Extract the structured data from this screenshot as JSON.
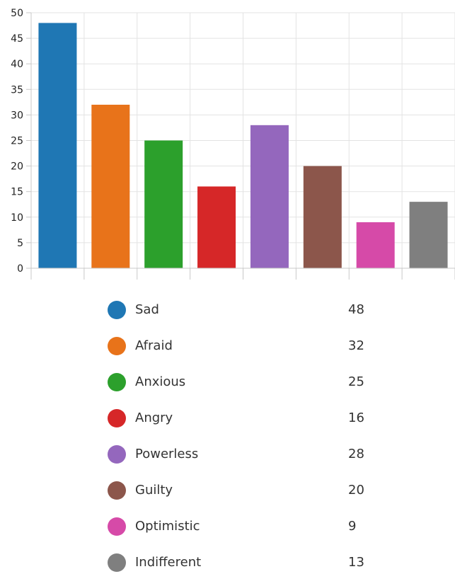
{
  "chart_data": {
    "type": "bar",
    "categories": [
      "Sad",
      "Afraid",
      "Anxious",
      "Angry",
      "Powerless",
      "Guilty",
      "Optimistic",
      "Indifferent"
    ],
    "values": [
      48,
      32,
      25,
      16,
      28,
      20,
      9,
      13
    ],
    "colors": [
      "#1f77b4",
      "#e8731a",
      "#2ca02c",
      "#d62728",
      "#9467bd",
      "#8c564b",
      "#d64aa8",
      "#7f7f7f"
    ],
    "ylim": [
      0,
      50
    ],
    "yticks": [
      0,
      5,
      10,
      15,
      20,
      25,
      30,
      35,
      40,
      45,
      50
    ],
    "grid": true,
    "legend_position": "bottom",
    "title": "",
    "xlabel": "",
    "ylabel": ""
  }
}
